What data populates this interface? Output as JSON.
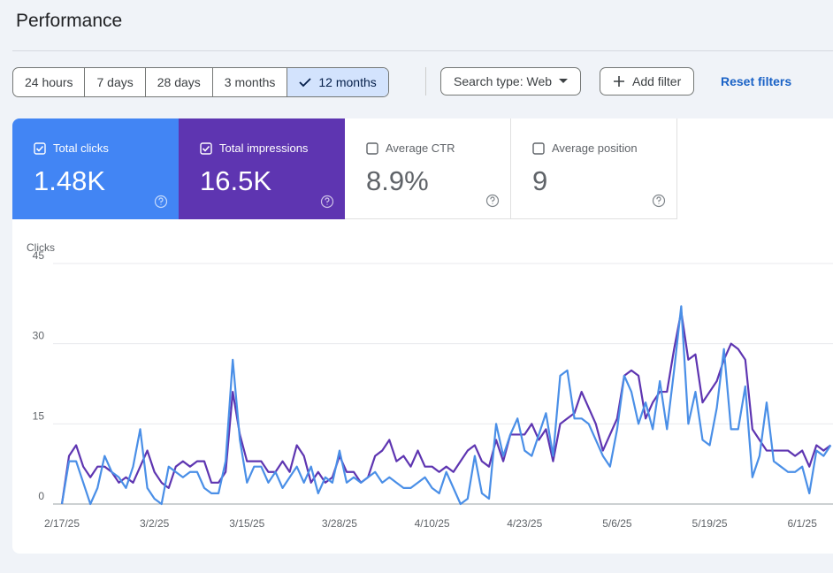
{
  "header": {
    "title": "Performance"
  },
  "filters": {
    "ranges": [
      "24 hours",
      "7 days",
      "28 days",
      "3 months",
      "12 months"
    ],
    "selected": 4,
    "search_type": "Search type: Web",
    "add_filter": "Add filter",
    "reset": "Reset filters"
  },
  "metrics": [
    {
      "label": "Total clicks",
      "value": "1.48K",
      "checked": true,
      "color": "#4285f4"
    },
    {
      "label": "Total impressions",
      "value": "16.5K",
      "checked": true,
      "color": "#5e35b1"
    },
    {
      "label": "Average CTR",
      "value": "8.9%",
      "checked": false
    },
    {
      "label": "Average position",
      "value": "9",
      "checked": false
    }
  ],
  "chart_data": {
    "type": "line",
    "y_label": "Clicks",
    "categories": [
      "2/17/25",
      null,
      null,
      null,
      null,
      null,
      null,
      null,
      null,
      null,
      null,
      null,
      null,
      "3/2/25",
      null,
      null,
      null,
      null,
      null,
      null,
      null,
      null,
      null,
      null,
      null,
      null,
      "3/15/25",
      null,
      null,
      null,
      null,
      null,
      null,
      null,
      null,
      null,
      null,
      null,
      null,
      "3/28/25",
      null,
      null,
      null,
      null,
      null,
      null,
      null,
      null,
      null,
      null,
      null,
      null,
      "4/10/25",
      null,
      null,
      null,
      null,
      null,
      null,
      null,
      null,
      null,
      null,
      null,
      null,
      "4/23/25",
      null,
      null,
      null,
      null,
      null,
      null,
      null,
      null,
      null,
      null,
      null,
      null,
      "5/6/25",
      null,
      null,
      null,
      null,
      null,
      null,
      null,
      null,
      null,
      null,
      null,
      null,
      "5/19/25",
      null,
      null,
      null,
      null,
      null,
      null,
      null,
      null,
      null,
      null,
      null,
      null,
      "6/1/25",
      null,
      null,
      null,
      null
    ],
    "series": [
      {
        "color": "#5e35b1",
        "values": [
          0,
          9,
          11,
          7,
          5,
          7,
          7,
          6,
          4,
          5,
          4,
          7,
          10,
          6,
          4,
          3,
          7,
          8,
          7,
          8,
          8,
          4,
          4,
          6,
          21,
          13,
          8,
          8,
          8,
          6,
          6,
          8,
          6,
          11,
          9,
          4,
          6,
          4,
          5,
          9,
          6,
          6,
          4,
          5,
          9,
          10,
          12,
          8,
          9,
          7,
          10,
          7,
          7,
          6,
          7,
          6,
          8,
          10,
          11,
          8,
          7,
          12,
          8,
          13,
          13,
          13,
          15,
          12,
          14,
          8,
          15,
          16,
          17,
          21,
          18,
          15,
          10,
          13,
          16,
          24,
          25,
          24,
          16,
          19,
          21,
          21,
          29,
          36,
          27,
          28,
          19,
          21,
          23,
          27,
          30,
          29,
          27,
          14,
          12,
          10,
          10,
          10,
          10,
          9,
          10,
          7,
          11,
          10,
          11
        ]
      },
      {
        "color": "#4a8fe7",
        "values": [
          0,
          8,
          8,
          4,
          0,
          3,
          9,
          6,
          5,
          3,
          7,
          14,
          3,
          1,
          0,
          7,
          6,
          5,
          6,
          6,
          3,
          2,
          2,
          8,
          27,
          12,
          4,
          7,
          7,
          4,
          6,
          3,
          5,
          7,
          4,
          7,
          2,
          5,
          4,
          10,
          4,
          5,
          4,
          5,
          6,
          4,
          5,
          4,
          3,
          3,
          4,
          5,
          3,
          2,
          6,
          3,
          0,
          1,
          9,
          2,
          1,
          15,
          9,
          13,
          16,
          10,
          9,
          13,
          17,
          9,
          24,
          25,
          16,
          16,
          15,
          12,
          9,
          7,
          14,
          24,
          21,
          15,
          19,
          14,
          23,
          14,
          25,
          37,
          15,
          21,
          12,
          11,
          18,
          29,
          14,
          14,
          22,
          5,
          9,
          19,
          8,
          7,
          6,
          6,
          7,
          2,
          10,
          9,
          11
        ]
      }
    ],
    "ylim": [
      0,
      45
    ],
    "yticks": [
      0,
      15,
      30,
      45
    ],
    "grid": true
  }
}
